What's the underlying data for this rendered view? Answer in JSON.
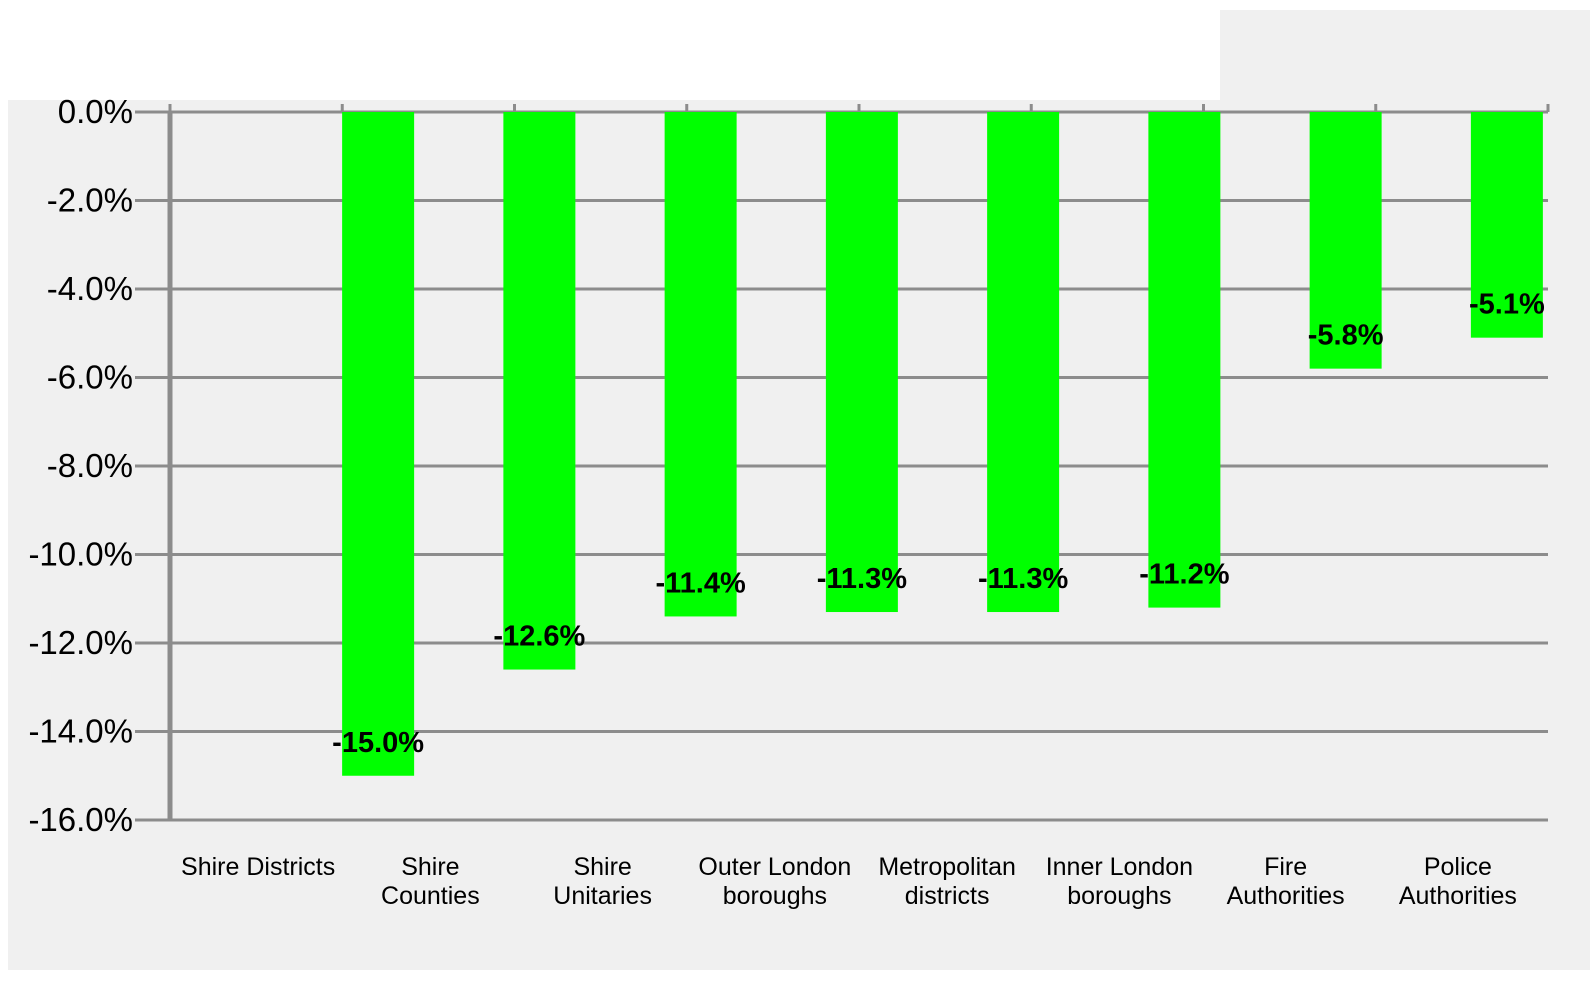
{
  "chart_data": {
    "type": "bar",
    "title": "",
    "xlabel": "",
    "ylabel": "",
    "categories": [
      [
        "Shire Districts"
      ],
      [
        "Shire",
        "Counties"
      ],
      [
        "Shire",
        "Unitaries"
      ],
      [
        "Outer London",
        "boroughs"
      ],
      [
        "Metropolitan",
        "districts"
      ],
      [
        "Inner London",
        "boroughs"
      ],
      [
        "Fire",
        "Authorities"
      ],
      [
        "Police",
        "Authorities"
      ]
    ],
    "values": [
      -15.0,
      -12.6,
      -11.4,
      -11.3,
      -11.3,
      -11.2,
      -5.8,
      -5.1
    ],
    "data_labels": [
      "-15.0%",
      "-12.6%",
      "-11.4%",
      "-11.3%",
      "-11.3%",
      "-11.2%",
      "-5.8%",
      "-5.1%"
    ],
    "y_ticks": [
      "0.0%",
      "-2.0%",
      "-4.0%",
      "-6.0%",
      "-8.0%",
      "-10.0%",
      "-12.0%",
      "-14.0%",
      "-16.0%"
    ],
    "ylim": [
      -16,
      0
    ],
    "grid": true,
    "bar_color": "#00ff00",
    "grid_color": "#8c8c8c"
  }
}
